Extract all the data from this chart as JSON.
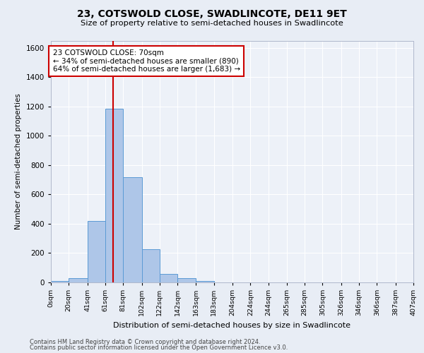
{
  "title_line1": "23, COTSWOLD CLOSE, SWADLINCOTE, DE11 9ET",
  "title_line2": "Size of property relative to semi-detached houses in Swadlincote",
  "xlabel": "Distribution of semi-detached houses by size in Swadlincote",
  "ylabel": "Number of semi-detached properties",
  "footer_line1": "Contains HM Land Registry data © Crown copyright and database right 2024.",
  "footer_line2": "Contains public sector information licensed under the Open Government Licence v3.0.",
  "annotation_line1": "23 COTSWOLD CLOSE: 70sqm",
  "annotation_line2": "← 34% of semi-detached houses are smaller (890)",
  "annotation_line3": "64% of semi-detached houses are larger (1,683) →",
  "property_size_sqm": 70,
  "bin_edges": [
    0,
    20,
    41,
    61,
    81,
    102,
    122,
    142,
    163,
    183,
    204,
    224,
    244,
    265,
    285,
    305,
    326,
    346,
    366,
    387,
    407
  ],
  "bar_values": [
    10,
    28,
    420,
    1185,
    720,
    225,
    60,
    30,
    10,
    0,
    0,
    0,
    0,
    0,
    0,
    0,
    0,
    0,
    0,
    0
  ],
  "bar_color": "#aec6e8",
  "bar_edge_color": "#5b9bd5",
  "marker_color": "#cc0000",
  "ylim": [
    0,
    1650
  ],
  "background_color": "#e8edf5",
  "plot_background": "#edf1f8"
}
